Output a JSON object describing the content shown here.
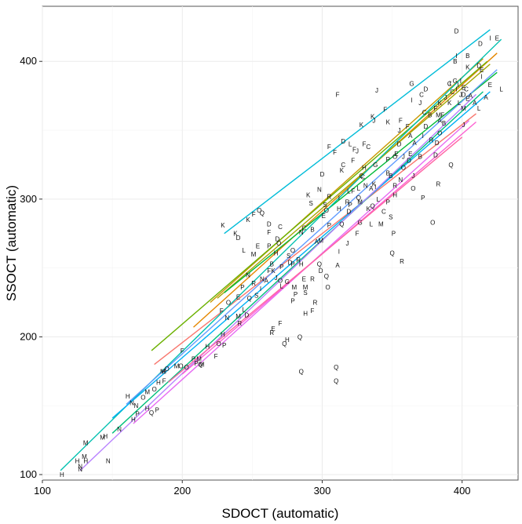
{
  "chart_data": {
    "type": "scatter",
    "title": "",
    "xlabel": "SDOCT (automatic)",
    "ylabel": "SSOCT (automatic)",
    "xlim": [
      100,
      440
    ],
    "ylim": [
      96,
      440
    ],
    "xticks": [
      100,
      200,
      300,
      400
    ],
    "yticks": [
      100,
      200,
      300,
      400
    ],
    "grid": true,
    "legend": "none",
    "marker": "letter labels A–S",
    "points": [
      [
        "H",
        114,
        100
      ],
      [
        "N",
        127,
        104
      ],
      [
        "N",
        127,
        106
      ],
      [
        "H",
        125,
        110
      ],
      [
        "M",
        130,
        113
      ],
      [
        "M",
        131,
        123
      ],
      [
        "H",
        131,
        110
      ],
      [
        "N",
        147,
        110
      ],
      [
        "M",
        143,
        127
      ],
      [
        "H",
        145,
        128
      ],
      [
        "N",
        155,
        133
      ],
      [
        "H",
        165,
        140
      ],
      [
        "P",
        168,
        144
      ],
      [
        "Q",
        178,
        145
      ],
      [
        "P",
        182,
        147
      ],
      [
        "H",
        175,
        148
      ],
      [
        "N",
        164,
        152
      ],
      [
        "N",
        167,
        150
      ],
      [
        "O",
        172,
        156
      ],
      [
        "H",
        161,
        157
      ],
      [
        "M",
        175,
        160
      ],
      [
        "O",
        180,
        162
      ],
      [
        "H",
        183,
        167
      ],
      [
        "F",
        187,
        168
      ],
      [
        "M",
        186,
        175
      ],
      [
        "O",
        189,
        177
      ],
      [
        "H",
        187,
        175
      ],
      [
        "M",
        196,
        179
      ],
      [
        "O",
        199,
        179
      ],
      [
        "O",
        203,
        178
      ],
      [
        "P",
        210,
        181
      ],
      [
        "M",
        214,
        180
      ],
      [
        "F",
        200,
        190
      ],
      [
        "M",
        212,
        184
      ],
      [
        "P",
        208,
        184
      ],
      [
        "Q",
        213,
        180
      ],
      [
        "F",
        224,
        186
      ],
      [
        "H",
        218,
        193
      ],
      [
        "O",
        226,
        195
      ],
      [
        "P",
        230,
        194
      ],
      [
        "F",
        228,
        219
      ],
      [
        "K",
        229,
        281
      ],
      [
        "K",
        238,
        275
      ],
      [
        "D",
        240,
        272
      ],
      [
        "F",
        251,
        289
      ],
      [
        "Q",
        257,
        290
      ],
      [
        "K",
        247,
        285
      ],
      [
        "O",
        255,
        292
      ],
      [
        "D",
        262,
        282
      ],
      [
        "L",
        244,
        263
      ],
      [
        "M",
        251,
        260
      ],
      [
        "P",
        262,
        266
      ],
      [
        "O",
        269,
        268
      ],
      [
        "D",
        277,
        254
      ],
      [
        "H",
        285,
        253
      ],
      [
        "Q",
        298,
        253
      ],
      [
        "R",
        293,
        242
      ],
      [
        "P",
        281,
        231
      ],
      [
        "F",
        270,
        210
      ],
      [
        "R",
        264,
        203
      ],
      [
        "E",
        265,
        206
      ],
      [
        "H",
        275,
        198
      ],
      [
        "Q",
        273,
        195
      ],
      [
        "H",
        288,
        217
      ],
      [
        "F",
        293,
        219
      ],
      [
        "Q",
        284,
        200
      ],
      [
        "Q",
        310,
        178
      ],
      [
        "Q",
        310,
        168
      ],
      [
        "Q",
        285,
        175
      ],
      [
        "P",
        279,
        253
      ],
      [
        "O",
        270,
        241
      ],
      [
        "M",
        288,
        236
      ],
      [
        "K",
        290,
        303
      ],
      [
        "F",
        305,
        338
      ],
      [
        "F",
        323,
        336
      ],
      [
        "J",
        325,
        335
      ],
      [
        "D",
        315,
        342
      ],
      [
        "L",
        320,
        340
      ],
      [
        "K",
        328,
        354
      ],
      [
        "K",
        336,
        360
      ],
      [
        "J",
        337,
        357
      ],
      [
        "F",
        330,
        340
      ],
      [
        "C",
        333,
        338
      ],
      [
        "K",
        347,
        356
      ],
      [
        "J",
        355,
        350
      ],
      [
        "F",
        356,
        357
      ],
      [
        "O",
        352,
        331
      ],
      [
        "Q",
        336,
        295
      ],
      [
        "P",
        347,
        298
      ],
      [
        "Q",
        350,
        261
      ],
      [
        "R",
        357,
        255
      ],
      [
        "O",
        379,
        283
      ],
      [
        "P",
        351,
        275
      ],
      [
        "K",
        337,
        311
      ],
      [
        "B",
        347,
        319
      ],
      [
        "C",
        328,
        317
      ],
      [
        "D",
        300,
        318
      ],
      [
        "K",
        314,
        321
      ],
      [
        "F",
        309,
        334
      ],
      [
        "L",
        326,
        308
      ],
      [
        "F",
        322,
        328
      ],
      [
        "C",
        315,
        325
      ],
      [
        "F",
        345,
        365
      ],
      [
        "F",
        311,
        376
      ],
      [
        "J",
        339,
        379
      ],
      [
        "I",
        364,
        372
      ],
      [
        "C",
        371,
        376
      ],
      [
        "D",
        374,
        380
      ],
      [
        "G",
        364,
        384
      ],
      [
        "J",
        391,
        384
      ],
      [
        "I",
        396,
        404
      ],
      [
        "B",
        404,
        404
      ],
      [
        "D",
        413,
        413
      ],
      [
        "I",
        420,
        417
      ],
      [
        "E",
        425,
        417
      ],
      [
        "D",
        396,
        422
      ],
      [
        "B",
        395,
        400
      ],
      [
        "D",
        412,
        397
      ],
      [
        "I",
        414,
        389
      ],
      [
        "K",
        404,
        396
      ],
      [
        "E",
        414,
        394
      ],
      [
        "E",
        420,
        383
      ],
      [
        "L",
        428,
        380
      ],
      [
        "A",
        417,
        374
      ],
      [
        "D",
        401,
        376
      ],
      [
        "C",
        403,
        380
      ],
      [
        "J",
        399,
        376
      ],
      [
        "I",
        399,
        386
      ],
      [
        "I",
        396,
        380
      ],
      [
        "A",
        409,
        370
      ],
      [
        "L",
        412,
        366
      ],
      [
        "J",
        401,
        354
      ],
      [
        "O",
        384,
        348
      ],
      [
        "D",
        382,
        341
      ],
      [
        "R",
        378,
        343
      ],
      [
        "B",
        370,
        331
      ],
      [
        "D",
        362,
        328
      ],
      [
        "R",
        352,
        310
      ],
      [
        "J",
        365,
        317
      ],
      [
        "P",
        372,
        301
      ],
      [
        "R",
        383,
        311
      ],
      [
        "O",
        365,
        308
      ],
      [
        "Q",
        392,
        325
      ],
      [
        "D",
        381,
        332
      ],
      [
        "A",
        384,
        357
      ],
      [
        "I",
        397,
        383
      ],
      [
        "M",
        383,
        361
      ],
      [
        "E",
        401,
        381
      ],
      [
        "C",
        391,
        384
      ],
      [
        "F",
        386,
        361
      ],
      [
        "K",
        391,
        370
      ],
      [
        "B",
        387,
        355
      ],
      [
        "J",
        370,
        370
      ],
      [
        "C",
        373,
        363
      ],
      [
        "F",
        361,
        353
      ],
      [
        "A",
        363,
        346
      ],
      [
        "D",
        355,
        340
      ],
      [
        "E",
        353,
        333
      ],
      [
        "P",
        347,
        329
      ],
      [
        "H",
        330,
        323
      ],
      [
        "B",
        349,
        317
      ],
      [
        "N",
        331,
        310
      ],
      [
        "L",
        319,
        306
      ],
      [
        "Q",
        326,
        301
      ],
      [
        "R",
        318,
        298
      ],
      [
        "C",
        329,
        316
      ],
      [
        "A",
        335,
        308
      ],
      [
        "M",
        327,
        298
      ],
      [
        "P",
        320,
        296
      ],
      [
        "H",
        312,
        293
      ],
      [
        "I",
        338,
        309
      ],
      [
        "G",
        338,
        325
      ],
      [
        "J",
        358,
        331
      ],
      [
        "F",
        322,
        306
      ],
      [
        "L",
        340,
        300
      ],
      [
        "N",
        298,
        307
      ],
      [
        "R",
        305,
        302
      ],
      [
        "S",
        292,
        297
      ],
      [
        "O",
        303,
        292
      ],
      [
        "I",
        312,
        301
      ],
      [
        "P",
        305,
        281
      ],
      [
        "Q",
        314,
        282
      ],
      [
        "D",
        319,
        291
      ],
      [
        "S",
        302,
        296
      ],
      [
        "E",
        301,
        288
      ],
      [
        "B",
        293,
        278
      ],
      [
        "C",
        287,
        279
      ],
      [
        "A",
        296,
        269
      ],
      [
        "M",
        299,
        270
      ],
      [
        "N",
        285,
        276
      ],
      [
        "O",
        279,
        263
      ],
      [
        "H",
        267,
        261
      ],
      [
        "P",
        271,
        251
      ],
      [
        "R",
        283,
        256
      ],
      [
        "S",
        276,
        259
      ],
      [
        "E",
        254,
        266
      ],
      [
        "C",
        270,
        280
      ],
      [
        "D",
        268,
        271
      ],
      [
        "F",
        262,
        276
      ],
      [
        "K",
        265,
        248
      ],
      [
        "N",
        247,
        245
      ],
      [
        "R",
        251,
        239
      ],
      [
        "N",
        257,
        242
      ],
      [
        "P",
        243,
        236
      ],
      [
        "Q",
        248,
        228
      ],
      [
        "E",
        240,
        229
      ],
      [
        "L",
        244,
        220
      ],
      [
        "O",
        233,
        225
      ],
      [
        "M",
        240,
        215
      ],
      [
        "N",
        232,
        214
      ],
      [
        "H",
        229,
        202
      ],
      [
        "R",
        241,
        210
      ],
      [
        "D",
        246,
        216
      ],
      [
        "S",
        253,
        230
      ],
      [
        "A",
        260,
        241
      ],
      [
        "B",
        264,
        253
      ],
      [
        "I",
        256,
        235
      ],
      [
        "J",
        267,
        243
      ],
      [
        "F",
        262,
        248
      ],
      [
        "G",
        275,
        240
      ],
      [
        "M",
        280,
        236
      ],
      [
        "L",
        271,
        237
      ],
      [
        "E",
        287,
        242
      ],
      [
        "S",
        288,
        232
      ],
      [
        "P",
        279,
        226
      ],
      [
        "R",
        295,
        225
      ],
      [
        "O",
        304,
        236
      ],
      [
        "Q",
        303,
        244
      ],
      [
        "D",
        299,
        248
      ],
      [
        "A",
        311,
        252
      ],
      [
        "I",
        312,
        262
      ],
      [
        "J",
        318,
        268
      ],
      [
        "F",
        325,
        275
      ],
      [
        "G",
        327,
        283
      ],
      [
        "K",
        333,
        293
      ],
      [
        "L",
        335,
        282
      ],
      [
        "M",
        342,
        282
      ],
      [
        "C",
        344,
        291
      ],
      [
        "S",
        349,
        287
      ],
      [
        "H",
        352,
        303
      ],
      [
        "N",
        356,
        314
      ],
      [
        "O",
        358,
        323
      ],
      [
        "E",
        363,
        333
      ],
      [
        "A",
        366,
        341
      ],
      [
        "I",
        372,
        346
      ],
      [
        "D",
        374,
        353
      ],
      [
        "B",
        377,
        361
      ],
      [
        "F",
        381,
        366
      ],
      [
        "K",
        384,
        370
      ],
      [
        "J",
        388,
        374
      ],
      [
        "C",
        393,
        378
      ],
      [
        "G",
        395,
        386
      ],
      [
        "L",
        398,
        370
      ],
      [
        "M",
        401,
        366
      ],
      [
        "E",
        404,
        373
      ],
      [
        "A",
        406,
        375
      ]
    ],
    "lines": [
      {
        "color": "#f8766d",
        "x": [
          180,
          410
        ],
        "y": [
          180,
          362
        ]
      },
      {
        "color": "#e58700",
        "x": [
          208,
          425
        ],
        "y": [
          207,
          406
        ]
      },
      {
        "color": "#c99800",
        "x": [
          220,
          415
        ],
        "y": [
          225,
          402
        ]
      },
      {
        "color": "#a3a500",
        "x": [
          225,
          420
        ],
        "y": [
          228,
          398
        ]
      },
      {
        "color": "#6bb100",
        "x": [
          178,
          418
        ],
        "y": [
          190,
          400
        ]
      },
      {
        "color": "#00ba38",
        "x": [
          230,
          425
        ],
        "y": [
          232,
          392
        ]
      },
      {
        "color": "#00bf7d",
        "x": [
          150,
          415
        ],
        "y": [
          130,
          378
        ]
      },
      {
        "color": "#00c0af",
        "x": [
          113,
          428
        ],
        "y": [
          103,
          416
        ]
      },
      {
        "color": "#00bcd8",
        "x": [
          230,
          420
        ],
        "y": [
          275,
          423
        ]
      },
      {
        "color": "#00b0f6",
        "x": [
          150,
          420
        ],
        "y": [
          141,
          378
        ]
      },
      {
        "color": "#619cff",
        "x": [
          160,
          425
        ],
        "y": [
          151,
          394
        ]
      },
      {
        "color": "#b983ff",
        "x": [
          127,
          410
        ],
        "y": [
          103,
          376
        ]
      },
      {
        "color": "#e76bf3",
        "x": [
          165,
          405
        ],
        "y": [
          137,
          357
        ]
      },
      {
        "color": "#fd61d1",
        "x": [
          200,
          410
        ],
        "y": [
          173,
          356
        ]
      },
      {
        "color": "#ff67a4",
        "x": [
          190,
          400
        ],
        "y": [
          167,
          345
        ]
      }
    ]
  }
}
